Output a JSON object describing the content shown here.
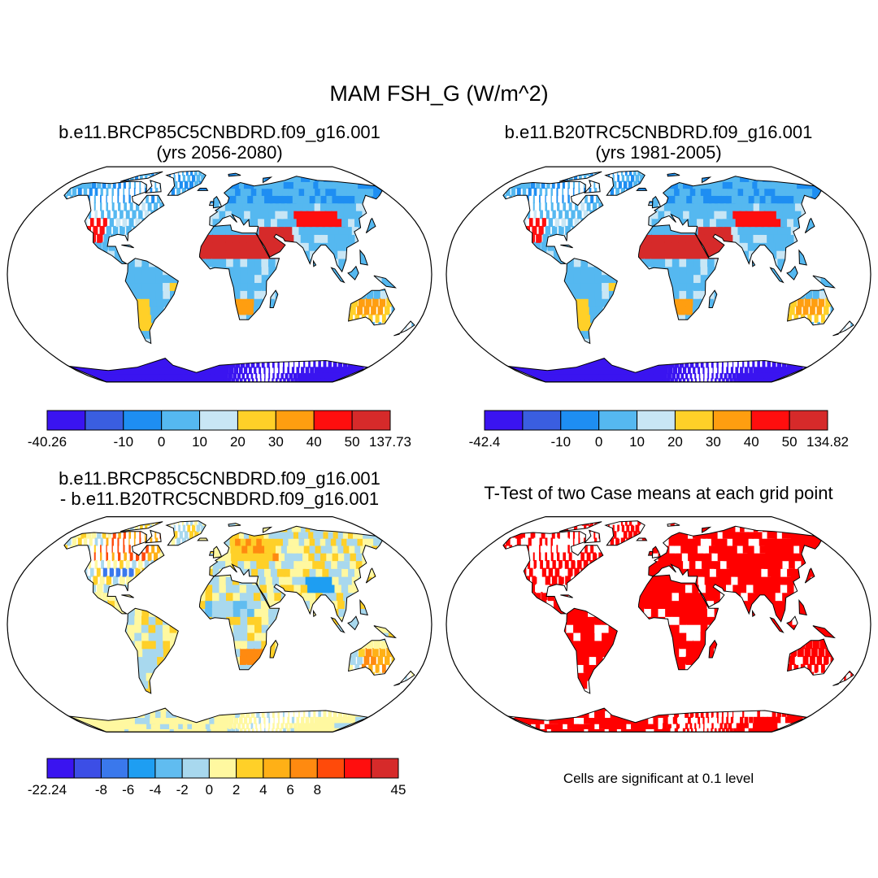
{
  "title": "MAM FSH_G (W/m^2)",
  "panels": [
    {
      "title_line1": "b.e11.BRCP85C5CNBDRD.f09_g16.001",
      "title_line2": "(yrs 2056-2080)",
      "colorbar": {
        "colors": [
          "#3a14f0",
          "#3a5ee0",
          "#1e8ef2",
          "#55b8f0",
          "#c8e6f5",
          "#ffd028",
          "#ff9e10",
          "#ff0e0e",
          "#d62a2a"
        ],
        "labels": [
          "-40.26",
          "-10",
          "0",
          "10",
          "20",
          "30",
          "40",
          "50",
          "137.73"
        ]
      }
    },
    {
      "title_line1": "b.e11.B20TRC5CNBDRD.f09_g16.001",
      "title_line2": "(yrs 1981-2005)",
      "colorbar": {
        "colors": [
          "#3a14f0",
          "#3a5ee0",
          "#1e8ef2",
          "#55b8f0",
          "#c8e6f5",
          "#ffd028",
          "#ff9e10",
          "#ff0e0e",
          "#d62a2a"
        ],
        "labels": [
          "-42.4",
          "-10",
          "0",
          "10",
          "20",
          "30",
          "40",
          "50",
          "134.82"
        ]
      }
    },
    {
      "title_line1": "b.e11.BRCP85C5CNBDRD.f09_g16.001",
      "title_line2": "- b.e11.B20TRC5CNBDRD.f09_g16.001",
      "colorbar": {
        "colors": [
          "#3a14f0",
          "#3c4ee6",
          "#3a78ec",
          "#1e9ef2",
          "#60bcf0",
          "#a8d8ee",
          "#fff8a0",
          "#ffd028",
          "#ffb016",
          "#ff8a10",
          "#ff4a0a",
          "#ff0e0e",
          "#d62a2a"
        ],
        "labels": [
          "-22.24",
          "-8",
          "-6",
          "-4",
          "-2",
          "0",
          "2",
          "4",
          "6",
          "8",
          "45"
        ]
      }
    },
    {
      "title_line1": "T-Test of two Case means at each grid point",
      "note": "Cells are significant at 0.1 level",
      "colors": {
        "significant": "#ff0000"
      }
    }
  ]
}
